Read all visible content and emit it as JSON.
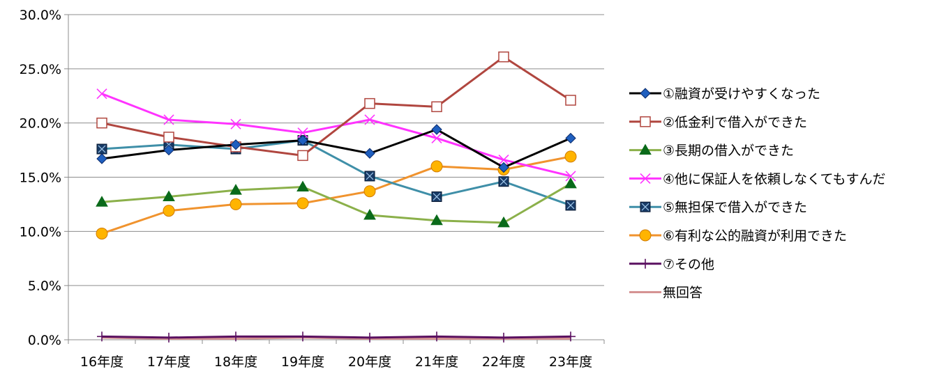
{
  "chart_data": {
    "type": "line",
    "title": "",
    "xlabel": "",
    "ylabel": "",
    "categories": [
      "16年度",
      "17年度",
      "18年度",
      "19年度",
      "20年度",
      "21年度",
      "22年度",
      "23年度"
    ],
    "ylim": [
      0,
      30
    ],
    "yticks": [
      0,
      5,
      10,
      15,
      20,
      25,
      30
    ],
    "ytick_labels": [
      "0.0%",
      "5.0%",
      "10.0%",
      "15.0%",
      "20.0%",
      "25.0%",
      "30.0%"
    ],
    "grid": true,
    "legend_position": "right",
    "series": [
      {
        "name": "①融資が受けやすくなった",
        "values": [
          16.7,
          17.5,
          18.0,
          18.4,
          17.2,
          19.4,
          15.9,
          18.6
        ],
        "color": "#000000",
        "marker": "diamond",
        "marker_fill": "#1f5fbf"
      },
      {
        "name": "②低金利で借入ができた",
        "values": [
          20.0,
          18.7,
          17.8,
          17.0,
          21.8,
          21.5,
          26.1,
          22.1
        ],
        "color": "#b0463f",
        "marker": "square-open",
        "marker_fill": "#ffffff"
      },
      {
        "name": "③長期の借入ができた",
        "values": [
          12.7,
          13.2,
          13.8,
          14.1,
          11.5,
          11.0,
          10.8,
          14.4
        ],
        "color": "#8bb04a",
        "marker": "triangle",
        "marker_fill": "#0a6a1a"
      },
      {
        "name": "④他に保証人を依頼しなくてもすんだ",
        "values": [
          22.7,
          20.3,
          19.9,
          19.1,
          20.3,
          18.6,
          16.6,
          15.1
        ],
        "color": "#ff33ff",
        "marker": "x",
        "marker_fill": "#ff33ff"
      },
      {
        "name": "⑤無担保で借入ができた",
        "values": [
          17.6,
          18.0,
          17.6,
          18.4,
          15.1,
          13.2,
          14.6,
          12.4
        ],
        "color": "#3f8fa8",
        "marker": "square-x",
        "marker_fill": "#173a66"
      },
      {
        "name": "⑥有利な公的融資が利用できた",
        "values": [
          9.8,
          11.9,
          12.5,
          12.6,
          13.7,
          16.0,
          15.7,
          16.9
        ],
        "color": "#f0932e",
        "marker": "circle",
        "marker_fill": "#ffb400"
      },
      {
        "name": "⑦その他",
        "values": [
          0.3,
          0.2,
          0.3,
          0.3,
          0.2,
          0.3,
          0.2,
          0.3
        ],
        "color": "#5a1060",
        "marker": "plus",
        "marker_fill": "#5a1060"
      },
      {
        "name": "無回答",
        "values": [
          0.2,
          0.1,
          0.1,
          0.2,
          0.1,
          0.1,
          0.1,
          0.1
        ],
        "color": "#d49090",
        "marker": "none",
        "marker_fill": "#d49090"
      }
    ]
  }
}
